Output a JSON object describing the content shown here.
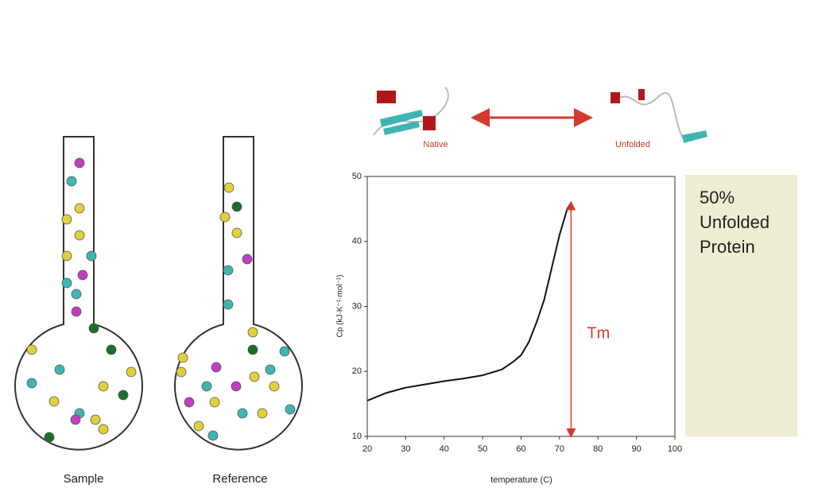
{
  "chart_data": {
    "type": "line",
    "x_label": "temperature (C)",
    "y_label": "Cp (kJ·K⁻¹·mol⁻¹)",
    "annotation": "Tm",
    "series": [
      {
        "color": "#111111",
        "x": [
          20,
          25,
          30,
          35,
          40,
          45,
          50,
          55,
          58,
          60,
          62,
          64,
          66,
          68,
          70,
          72,
          73
        ],
        "values": [
          15.5,
          16.7,
          17.5,
          18.0,
          18.5,
          18.9,
          19.4,
          20.3,
          21.5,
          22.5,
          24.5,
          27.5,
          31,
          36,
          41,
          45,
          46
        ]
      }
    ],
    "xlim": [
      20,
      100
    ],
    "xticks": [
      20,
      30,
      40,
      50,
      60,
      70,
      80,
      90,
      100
    ],
    "ylim": [
      10,
      50
    ],
    "yticks": [
      10,
      20,
      30,
      40,
      50
    ]
  },
  "states": {
    "native": "Native",
    "unfolded": "Unfolded"
  },
  "cells": {
    "sample": "Sample",
    "reference": "Reference"
  },
  "callout": [
    "50%",
    "Unfolded",
    "Protein"
  ]
}
